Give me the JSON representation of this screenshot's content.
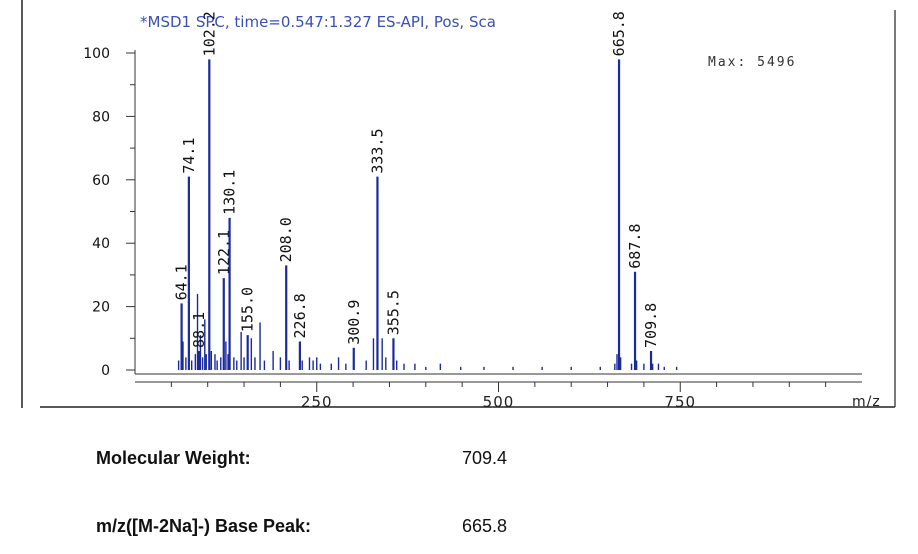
{
  "chart_data": {
    "type": "bar",
    "title": "*MSD1 SPC, time=0.547:1.327   ES-API, Pos, Sca",
    "max_text": "Max:  5496",
    "xlabel": "m/z",
    "ylabel": "",
    "xlim": [
      0,
      1000
    ],
    "ylim": [
      0,
      100
    ],
    "x_ticks": [
      250,
      500,
      750
    ],
    "y_ticks": [
      0,
      20,
      40,
      60,
      80,
      100
    ],
    "grid": false,
    "color": "#1a2a9e",
    "labeled_peaks": [
      {
        "mz": 64.1,
        "label": "64.1",
        "intensity": 21
      },
      {
        "mz": 74.1,
        "label": "74.1",
        "intensity": 61
      },
      {
        "mz": 88.1,
        "label": "88.1",
        "intensity": 6
      },
      {
        "mz": 102.2,
        "label": "102.2",
        "intensity": 98
      },
      {
        "mz": 122.1,
        "label": "122.1",
        "intensity": 29
      },
      {
        "mz": 130.1,
        "label": "130.1",
        "intensity": 48
      },
      {
        "mz": 155.0,
        "label": "155.0",
        "intensity": 11
      },
      {
        "mz": 208.0,
        "label": "208.0",
        "intensity": 33
      },
      {
        "mz": 226.8,
        "label": "226.8",
        "intensity": 9
      },
      {
        "mz": 300.9,
        "label": "300.9",
        "intensity": 7
      },
      {
        "mz": 333.5,
        "label": "333.5",
        "intensity": 61
      },
      {
        "mz": 355.5,
        "label": "355.5",
        "intensity": 10
      },
      {
        "mz": 665.8,
        "label": "665.8",
        "intensity": 98
      },
      {
        "mz": 687.8,
        "label": "687.8",
        "intensity": 31
      },
      {
        "mz": 709.8,
        "label": "709.8",
        "intensity": 6
      }
    ],
    "minor_peaks": [
      {
        "mz": 60,
        "intensity": 3
      },
      {
        "mz": 66,
        "intensity": 9
      },
      {
        "mz": 70,
        "intensity": 4
      },
      {
        "mz": 78,
        "intensity": 3
      },
      {
        "mz": 83,
        "intensity": 5
      },
      {
        "mz": 86,
        "intensity": 24
      },
      {
        "mz": 90,
        "intensity": 11
      },
      {
        "mz": 93,
        "intensity": 4
      },
      {
        "mz": 96,
        "intensity": 16
      },
      {
        "mz": 98,
        "intensity": 5
      },
      {
        "mz": 105,
        "intensity": 6
      },
      {
        "mz": 110,
        "intensity": 5
      },
      {
        "mz": 113,
        "intensity": 3
      },
      {
        "mz": 118,
        "intensity": 4
      },
      {
        "mz": 125,
        "intensity": 9
      },
      {
        "mz": 128,
        "intensity": 5
      },
      {
        "mz": 136,
        "intensity": 4
      },
      {
        "mz": 140,
        "intensity": 3
      },
      {
        "mz": 146,
        "intensity": 12
      },
      {
        "mz": 150,
        "intensity": 4
      },
      {
        "mz": 160,
        "intensity": 10
      },
      {
        "mz": 165,
        "intensity": 4
      },
      {
        "mz": 172,
        "intensity": 15
      },
      {
        "mz": 178,
        "intensity": 3
      },
      {
        "mz": 190,
        "intensity": 6
      },
      {
        "mz": 200,
        "intensity": 4
      },
      {
        "mz": 212,
        "intensity": 3
      },
      {
        "mz": 230,
        "intensity": 3
      },
      {
        "mz": 240,
        "intensity": 4
      },
      {
        "mz": 245,
        "intensity": 3
      },
      {
        "mz": 250,
        "intensity": 4
      },
      {
        "mz": 255,
        "intensity": 2
      },
      {
        "mz": 270,
        "intensity": 2
      },
      {
        "mz": 280,
        "intensity": 4
      },
      {
        "mz": 290,
        "intensity": 2
      },
      {
        "mz": 318,
        "intensity": 3
      },
      {
        "mz": 328,
        "intensity": 10
      },
      {
        "mz": 340,
        "intensity": 10
      },
      {
        "mz": 345,
        "intensity": 4
      },
      {
        "mz": 360,
        "intensity": 3
      },
      {
        "mz": 370,
        "intensity": 2
      },
      {
        "mz": 385,
        "intensity": 2
      },
      {
        "mz": 400,
        "intensity": 1
      },
      {
        "mz": 420,
        "intensity": 2
      },
      {
        "mz": 448,
        "intensity": 1
      },
      {
        "mz": 480,
        "intensity": 1
      },
      {
        "mz": 520,
        "intensity": 1
      },
      {
        "mz": 560,
        "intensity": 1
      },
      {
        "mz": 600,
        "intensity": 1
      },
      {
        "mz": 640,
        "intensity": 1
      },
      {
        "mz": 660,
        "intensity": 2
      },
      {
        "mz": 663,
        "intensity": 5
      },
      {
        "mz": 668,
        "intensity": 4
      },
      {
        "mz": 683,
        "intensity": 2
      },
      {
        "mz": 690,
        "intensity": 3
      },
      {
        "mz": 700,
        "intensity": 2
      },
      {
        "mz": 712,
        "intensity": 2
      },
      {
        "mz": 720,
        "intensity": 2
      },
      {
        "mz": 728,
        "intensity": 1
      },
      {
        "mz": 745,
        "intensity": 1
      }
    ]
  },
  "info": {
    "molecular_weight_label": "Molecular Weight:",
    "molecular_weight_value": "709.4",
    "base_peak_label": "m/z([M-2Na]-) Base Peak:",
    "base_peak_value": "665.8"
  }
}
